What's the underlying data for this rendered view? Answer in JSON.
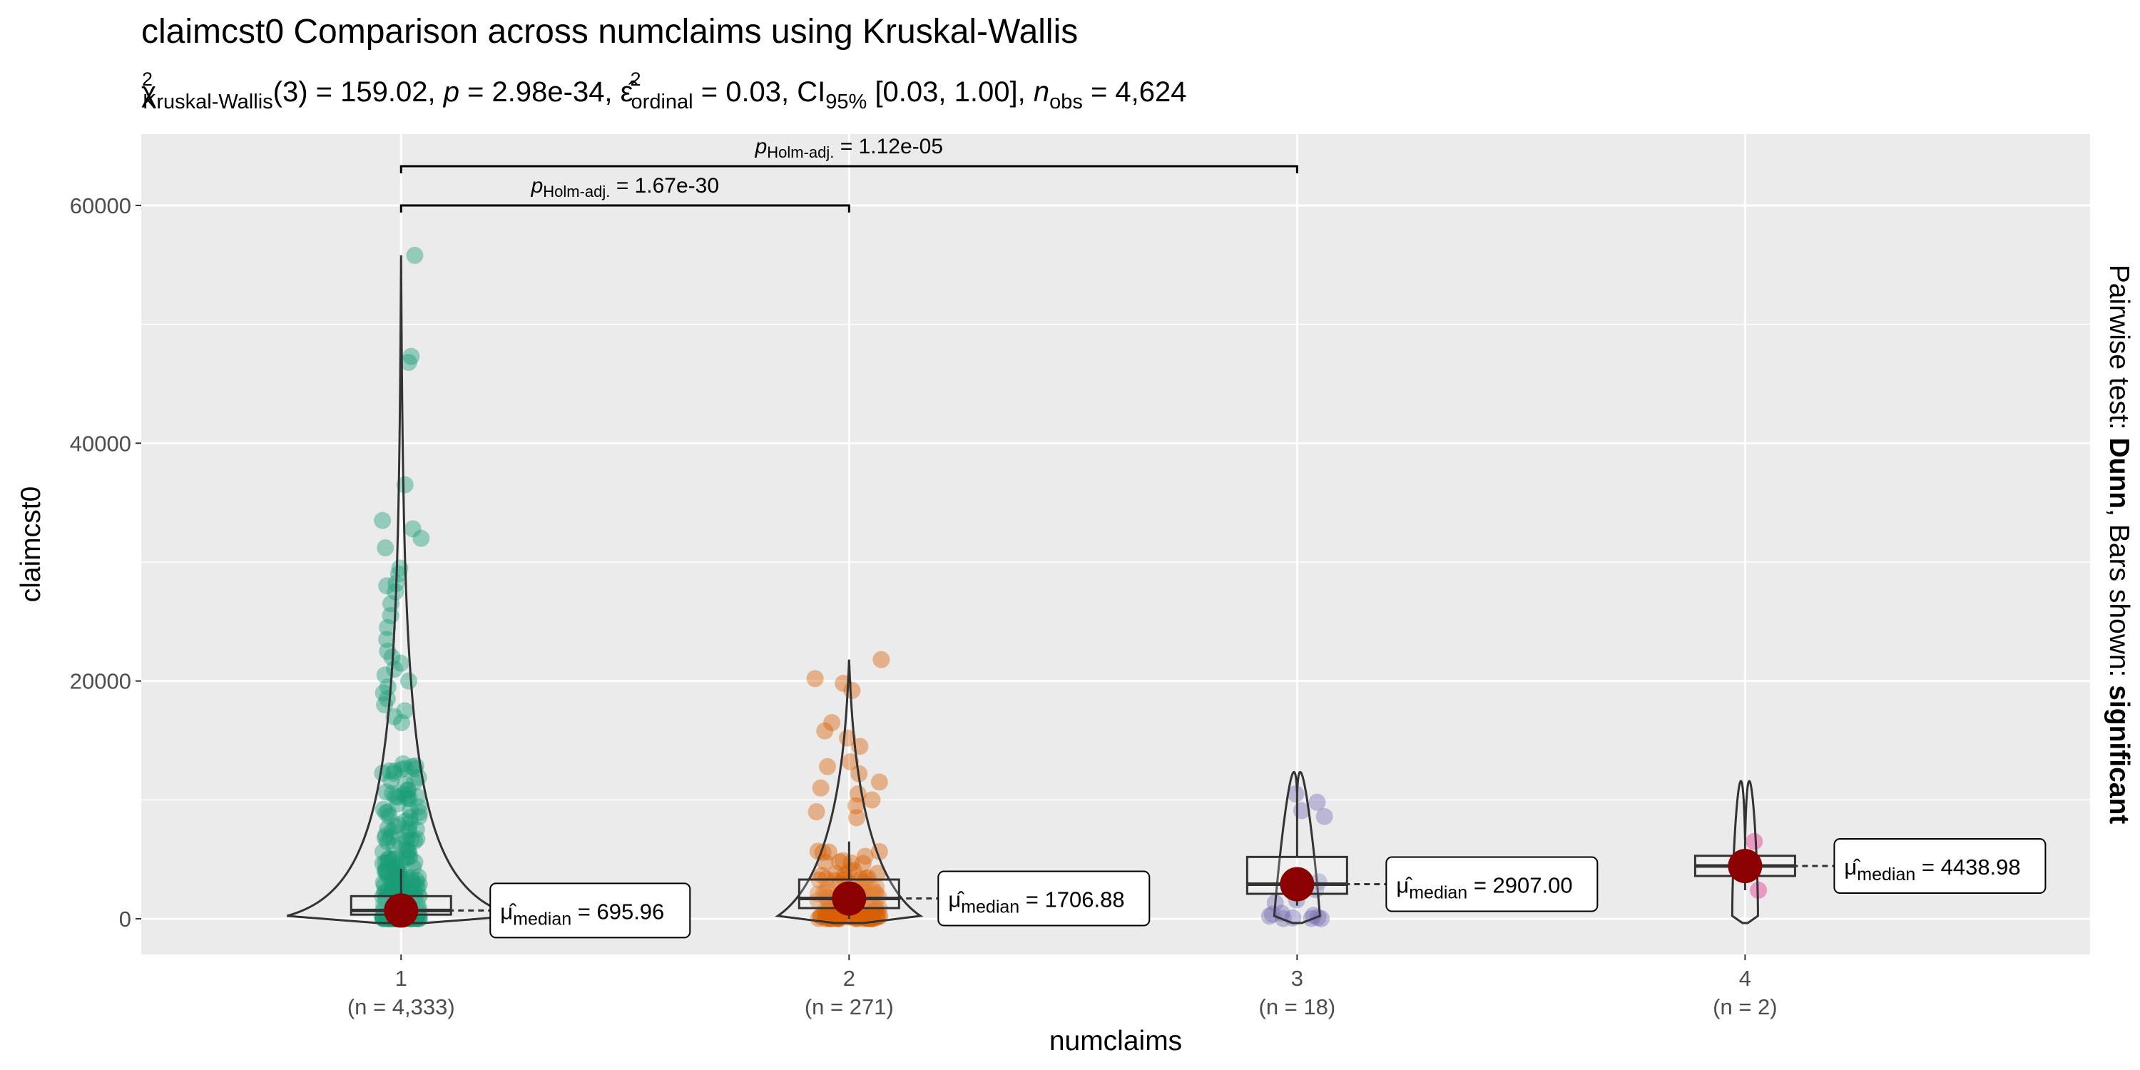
{
  "title": "claimcst0 Comparison across numclaims using Kruskal-Wallis",
  "subtitle": {
    "chi": "χ",
    "chi_sup": "2",
    "chi_sub": "Kruskal-Wallis",
    "df_stat": "(3) = 159.02, ",
    "p_sym": "p",
    "p_val": " = 2.98e-34, ",
    "eps": "ε̂",
    "eps_sup": "2",
    "eps_sub": "ordinal",
    "eps_val": " = 0.03, CI",
    "ci_sub": "95%",
    "ci_val": " [0.03, 1.00], ",
    "n_sym": "n",
    "n_sub": "obs",
    "n_val": " = 4,624"
  },
  "side_label": {
    "prefix": "Pairwise test: ",
    "test": "Dunn",
    "middle": ", Bars shown: ",
    "shown": "significant"
  },
  "chart_data": {
    "type": "violin-box-scatter",
    "xlabel": "numclaims",
    "ylabel": "claimcst0",
    "ylim": [
      -3000,
      66000
    ],
    "yticks": [
      0,
      20000,
      40000,
      60000
    ],
    "categories": [
      "1",
      "2",
      "3",
      "4"
    ],
    "n_labels": [
      "(n = 4,333)",
      "(n = 271)",
      "(n = 18)",
      "(n = 2)"
    ],
    "colors": [
      "#1b9e77",
      "#d95f02",
      "#7570b3",
      "#e7298a"
    ],
    "medians": [
      695.96,
      1706.88,
      2907.0,
      4438.98
    ],
    "median_labels": [
      "μ̂ median = 695.96",
      "μ̂ median = 1706.88",
      "μ̂ median = 2907.00",
      "μ̂ median = 4438.98"
    ],
    "boxes": [
      {
        "q1": 350,
        "median": 696,
        "q3": 1900,
        "whisker_low": 0,
        "whisker_high": 4200
      },
      {
        "q1": 900,
        "median": 1707,
        "q3": 3300,
        "whisker_low": 0,
        "whisker_high": 6500
      },
      {
        "q1": 2100,
        "median": 2907,
        "q3": 5200,
        "whisker_low": 1100,
        "whisker_high": 10500
      },
      {
        "q1": 3600,
        "median": 4439,
        "q3": 5300,
        "whisker_low": 2400,
        "whisker_high": 6500
      }
    ],
    "max_values": [
      55800,
      21800,
      10500,
      6500
    ],
    "outliers": [
      [
        55800,
        47300,
        46800,
        36500,
        33500,
        32800,
        32000,
        31200,
        29500,
        29000,
        28200,
        28000,
        27500,
        26500,
        25500,
        24500,
        23500,
        22500,
        22000,
        21500,
        21000,
        20500,
        20000,
        19500,
        19000,
        18500,
        18000,
        17500,
        17000,
        16500
      ],
      [
        21800,
        20200,
        19800,
        19200,
        16500,
        15800,
        15200,
        14500,
        13200,
        12800,
        12200,
        11500,
        11000,
        10500,
        10000,
        9500,
        9000,
        8500
      ],
      [
        10500,
        9800,
        9100,
        8600
      ],
      []
    ],
    "pairwise": [
      {
        "from": "1",
        "to": "2",
        "label_prefix": "p",
        "label_sub": "Holm-adj.",
        "label_value": " = 1.67e-30"
      },
      {
        "from": "1",
        "to": "3",
        "label_prefix": "p",
        "label_sub": "Holm-adj.",
        "label_value": " = 1.12e-05"
      }
    ],
    "grid": true,
    "legend": "none"
  }
}
